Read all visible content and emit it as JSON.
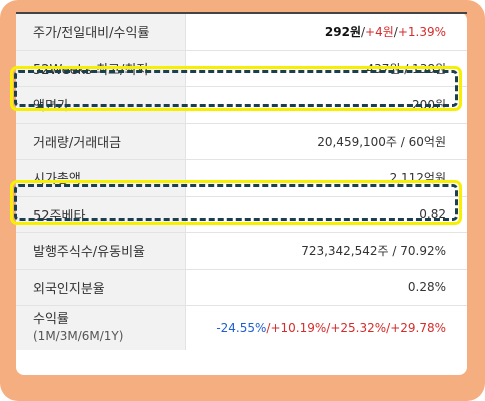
{
  "rows": [
    {
      "label": "주가/전일대비/수익률",
      "price": "292원",
      "change": "+4원",
      "rate": "+1.39%"
    },
    {
      "label": "52Weeks 최고/최저",
      "value": "437원 / 138원"
    },
    {
      "label": "액면가",
      "value": "200원"
    },
    {
      "label": "거래량/거래대금",
      "value": "20,459,100주 / 60억원"
    },
    {
      "label": "시가총액",
      "value": "2,112억원"
    },
    {
      "label": "52주베타",
      "value": "0.82"
    },
    {
      "label": "발행주식수/유동비율",
      "value": "723,342,542주 / 70.92%"
    },
    {
      "label": "외국인지분율",
      "value": "0.28%"
    },
    {
      "label": "수익률",
      "sublabel": "(1M/3M/6M/1Y)",
      "r1m": "-24.55%",
      "r3m": "+10.19%",
      "r6m": "+25.32%",
      "r1y": "+29.78%"
    }
  ],
  "separator": " / ",
  "slash": "/ ",
  "colors": {
    "frame": "#f5ae80",
    "highlight_outer": "#f6f000",
    "highlight_dash": "#1b3f4e",
    "up": "#d62b2b",
    "down": "#1f5fcf"
  }
}
